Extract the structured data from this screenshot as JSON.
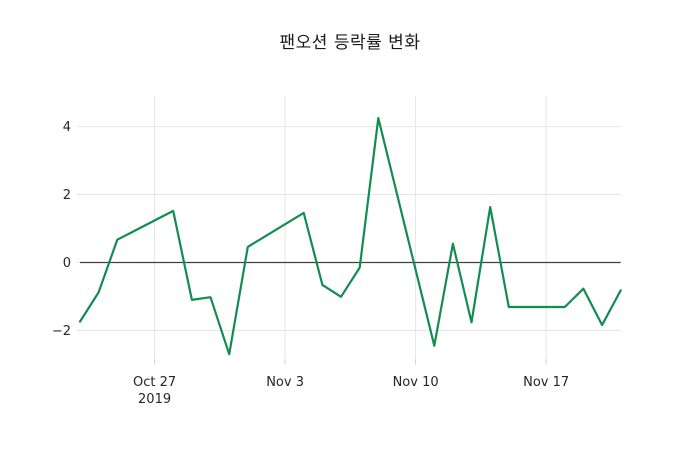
{
  "chart_data": {
    "type": "line",
    "title": "팬오션 등락률 변화",
    "xlabel": "",
    "ylabel": "",
    "legend": "none",
    "grid": true,
    "zero_line": true,
    "xlim": [
      "2019-10-23",
      "2019-11-21"
    ],
    "ylim": [
      -2.84,
      4.9
    ],
    "series": [
      {
        "name": "등락률",
        "points": [
          {
            "date": "2019-10-23",
            "value": -1.74
          },
          {
            "date": "2019-10-24",
            "value": -0.88
          },
          {
            "date": "2019-10-25",
            "value": 0.67
          },
          {
            "date": "2019-10-28",
            "value": 1.52
          },
          {
            "date": "2019-10-29",
            "value": -1.1
          },
          {
            "date": "2019-10-30",
            "value": -1.02
          },
          {
            "date": "2019-10-31",
            "value": -2.7
          },
          {
            "date": "2019-11-01",
            "value": 0.46
          },
          {
            "date": "2019-11-04",
            "value": 1.46
          },
          {
            "date": "2019-11-05",
            "value": -0.66
          },
          {
            "date": "2019-11-06",
            "value": -1.01
          },
          {
            "date": "2019-11-07",
            "value": -0.15
          },
          {
            "date": "2019-11-08",
            "value": 4.25
          },
          {
            "date": "2019-11-11",
            "value": -2.45
          },
          {
            "date": "2019-11-12",
            "value": 0.55
          },
          {
            "date": "2019-11-13",
            "value": -1.76
          },
          {
            "date": "2019-11-14",
            "value": 1.63
          },
          {
            "date": "2019-11-15",
            "value": -1.31
          },
          {
            "date": "2019-11-18",
            "value": -1.31
          },
          {
            "date": "2019-11-19",
            "value": -0.77
          },
          {
            "date": "2019-11-20",
            "value": -1.84
          },
          {
            "date": "2019-11-21",
            "value": -0.82
          }
        ]
      }
    ],
    "x_ticks": [
      {
        "date": "2019-10-27",
        "label": "Oct 27",
        "sublabel": "2019"
      },
      {
        "date": "2019-11-03",
        "label": "Nov 3",
        "sublabel": ""
      },
      {
        "date": "2019-11-10",
        "label": "Nov 10",
        "sublabel": ""
      },
      {
        "date": "2019-11-17",
        "label": "Nov 17",
        "sublabel": ""
      }
    ],
    "y_ticks": [
      {
        "value": 4,
        "label": "4"
      },
      {
        "value": 2,
        "label": "2"
      },
      {
        "value": 0,
        "label": "0"
      },
      {
        "value": -2,
        "label": "−2"
      }
    ],
    "colors": {
      "line": "#128c52",
      "grid": "#e6e6e6",
      "zero_line": "#404040",
      "tick": "#cfcfcf",
      "text": "#262626",
      "background": "#ffffff"
    }
  }
}
